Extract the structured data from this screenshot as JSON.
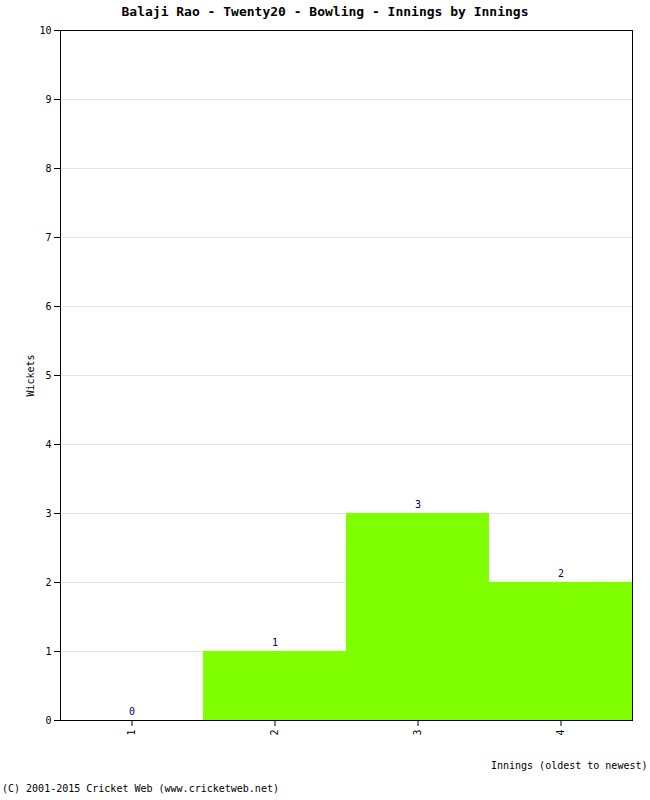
{
  "chart_data": {
    "type": "bar",
    "title": "Balaji Rao - Twenty20 - Bowling - Innings by Innings",
    "x_label": "Innings (oldest to newest)",
    "y_label": "Wickets",
    "categories": [
      "1",
      "2",
      "3",
      "4"
    ],
    "values": [
      0,
      1,
      3,
      2
    ],
    "color": "#80ff00",
    "ylim": [
      0,
      10
    ],
    "yticks": [
      0,
      1,
      2,
      3,
      4,
      5,
      6,
      7,
      8,
      9,
      10
    ],
    "grid": true,
    "data_labels": true,
    "caption": "(C) 2001-2015 Cricket Web (www.cricketweb.net)"
  }
}
